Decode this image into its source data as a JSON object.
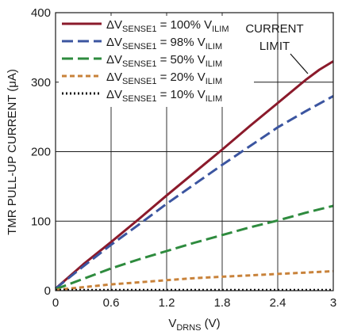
{
  "chart_data": {
    "type": "line",
    "xlabel": "VDRNS (V)",
    "xlabel_parts": {
      "main": "V",
      "sub": "DRNS",
      "tail": " (V)"
    },
    "ylabel": "TMR PULL-UP CURRENT (μA)",
    "xlim": [
      0,
      3
    ],
    "ylim": [
      0,
      400
    ],
    "x_ticks": [
      "0",
      "0.6",
      "1.2",
      "1.8",
      "2.4",
      "3"
    ],
    "y_ticks": [
      "0",
      "100",
      "200",
      "300",
      "400"
    ],
    "grid": true,
    "legend_position": "top-left",
    "annotation": {
      "line1": "CURRENT",
      "line2": "LIMIT"
    },
    "series": [
      {
        "name": "ΔVSENSE1 = 100% VILIM",
        "label_parts": {
          "a": "ΔV",
          "a_sub": "SENSE1",
          "b": " = 100% V",
          "b_sub": "ILIM"
        },
        "color": "#8b1a2b",
        "style": "solid",
        "x": [
          0,
          0.3,
          0.6,
          0.9,
          1.2,
          1.5,
          1.8,
          2.1,
          2.4,
          2.7,
          2.85,
          3.0
        ],
        "y": [
          3,
          38,
          70,
          103,
          137,
          170,
          203,
          237,
          270,
          303,
          318,
          330
        ]
      },
      {
        "name": "ΔVSENSE1 = 98% VILIM",
        "label_parts": {
          "a": "ΔV",
          "a_sub": "SENSE1",
          "b": " = 98% V",
          "b_sub": "ILIM"
        },
        "color": "#3b55a0",
        "style": "dashed",
        "x": [
          0,
          0.3,
          0.6,
          0.9,
          1.2,
          1.5,
          1.8,
          2.1,
          2.4,
          2.7,
          3.0
        ],
        "y": [
          3,
          35,
          66,
          95,
          125,
          153,
          181,
          208,
          235,
          258,
          280
        ]
      },
      {
        "name": "ΔVSENSE1 = 50% VILIM",
        "label_parts": {
          "a": "ΔV",
          "a_sub": "SENSE1",
          "b": " = 50% V",
          "b_sub": "ILIM"
        },
        "color": "#2e8b3e",
        "style": "dashed",
        "x": [
          0,
          0.3,
          0.6,
          0.9,
          1.2,
          1.5,
          1.8,
          2.1,
          2.4,
          2.7,
          3.0
        ],
        "y": [
          2,
          17,
          32,
          45,
          57,
          69,
          80,
          91,
          101,
          112,
          122
        ]
      },
      {
        "name": "ΔVSENSE1 = 20% VILIM",
        "label_parts": {
          "a": "ΔV",
          "a_sub": "SENSE1",
          "b": " = 20% V",
          "b_sub": "ILIM"
        },
        "color": "#c8823a",
        "style": "dotted-dash",
        "x": [
          0,
          0.3,
          0.6,
          0.9,
          1.2,
          1.5,
          1.8,
          2.1,
          2.4,
          2.7,
          3.0
        ],
        "y": [
          1,
          5,
          9,
          12,
          15,
          18,
          20,
          22,
          24,
          26,
          28
        ]
      },
      {
        "name": "ΔVSENSE1 = 10% VILIM",
        "label_parts": {
          "a": "ΔV",
          "a_sub": "SENSE1",
          "b": " = 10% V",
          "b_sub": "ILIM"
        },
        "color": "#111111",
        "style": "dotted",
        "x": [
          0,
          0.6,
          1.2,
          1.8,
          2.4,
          3.0
        ],
        "y": [
          1,
          1,
          1,
          1,
          1,
          1
        ]
      }
    ]
  }
}
